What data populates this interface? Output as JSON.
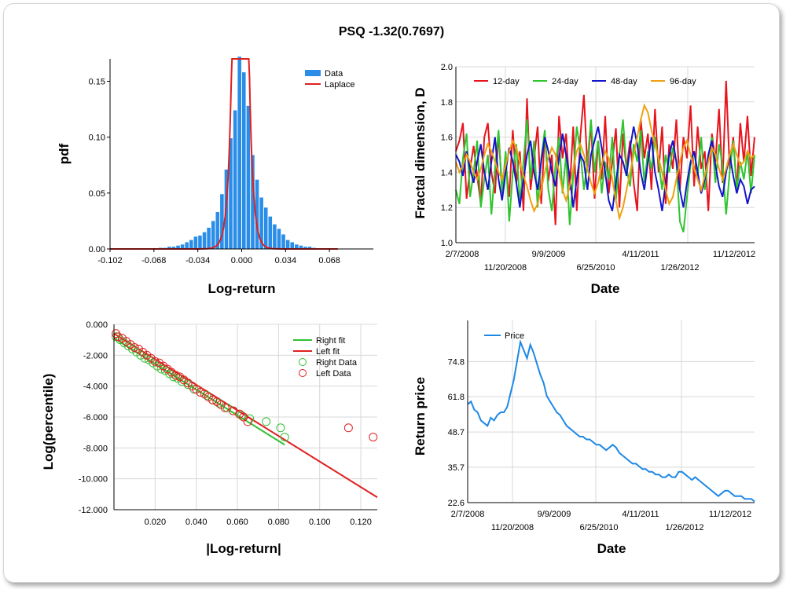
{
  "title": "PSQ -1.32(0.7697)",
  "chart_data": [
    {
      "type": "bar",
      "id": "histogram",
      "xlabel": "Log-return",
      "ylabel": "pdf",
      "xlim": [
        -0.102,
        0.102
      ],
      "ylim": [
        0,
        0.17
      ],
      "xticks": [
        "-0.102",
        "-0.068",
        "-0.034",
        "0.000",
        "0.034",
        "0.068"
      ],
      "xtick_values": [
        -0.102,
        -0.068,
        -0.034,
        0.0,
        0.034,
        0.068
      ],
      "yticks": [
        "0.00",
        "0.05",
        "0.10",
        "0.15"
      ],
      "ytick_values": [
        0,
        0.05,
        0.1,
        0.15
      ],
      "legend": [
        "Data",
        "Laplace"
      ],
      "bin_width": 0.0034,
      "bin_centers": [
        -0.0629,
        -0.0595,
        -0.0561,
        -0.0527,
        -0.0493,
        -0.0459,
        -0.0425,
        -0.0391,
        -0.0357,
        -0.0323,
        -0.0289,
        -0.0255,
        -0.0221,
        -0.0187,
        -0.0153,
        -0.0119,
        -0.0085,
        -0.0051,
        -0.0017,
        0.0017,
        0.0051,
        0.0085,
        0.0119,
        0.0153,
        0.0187,
        0.0221,
        0.0255,
        0.0289,
        0.0323,
        0.0357,
        0.0391,
        0.0425,
        0.0459,
        0.0493,
        0.0527,
        0.0561
      ],
      "values": [
        0.001,
        0.001,
        0.002,
        0.002,
        0.003,
        0.004,
        0.006,
        0.008,
        0.011,
        0.012,
        0.015,
        0.019,
        0.025,
        0.033,
        0.049,
        0.071,
        0.099,
        0.124,
        0.172,
        0.158,
        0.128,
        0.084,
        0.062,
        0.046,
        0.037,
        0.029,
        0.022,
        0.018,
        0.013,
        0.008,
        0.006,
        0.004,
        0.003,
        0.002,
        0.002,
        0.001
      ],
      "laplace": {
        "mu": -0.001,
        "b": 0.0029
      }
    },
    {
      "type": "line",
      "id": "fractal",
      "xlabel": "Date",
      "ylabel": "Fractal dimension, D",
      "ylim": [
        1.0,
        2.0
      ],
      "xticks_top": [
        "2/7/2008",
        "9/9/2009",
        "4/11/2011",
        "11/12/2012"
      ],
      "xticks_bottom": [
        "11/20/2008",
        "6/25/2010",
        "1/26/2012"
      ],
      "yticks": [
        "1.0",
        "1.2",
        "1.4",
        "1.6",
        "1.8",
        "2.0"
      ],
      "ytick_values": [
        1.0,
        1.2,
        1.4,
        1.6,
        1.8,
        2.0
      ],
      "series": [
        {
          "name": "12-day",
          "color": "#e8141c",
          "values": [
            1.52,
            1.58,
            1.68,
            1.25,
            1.42,
            1.55,
            1.38,
            1.22,
            1.6,
            1.68,
            1.4,
            1.28,
            1.62,
            1.3,
            1.46,
            1.26,
            1.64,
            1.34,
            1.52,
            1.18,
            1.82,
            1.3,
            1.48,
            1.66,
            1.22,
            1.62,
            1.35,
            1.5,
            1.1,
            1.72,
            1.48,
            1.62,
            1.3,
            1.66,
            1.18,
            1.6,
            1.84,
            1.42,
            1.68,
            1.25,
            1.58,
            1.36,
            1.72,
            1.28,
            1.46,
            1.65,
            1.2,
            1.62,
            1.42,
            1.58,
            1.34,
            1.18,
            1.7,
            1.48,
            1.62,
            1.3,
            1.76,
            1.4,
            1.66,
            1.22,
            1.56,
            1.42,
            1.7,
            1.3,
            1.6,
            1.48,
            1.78,
            1.32,
            1.66,
            1.42,
            1.52,
            1.18,
            1.62,
            1.46,
            1.76,
            1.34,
            1.92,
            1.42,
            1.6,
            1.3,
            1.68,
            1.46,
            1.72,
            1.38,
            1.6
          ]
        },
        {
          "name": "24-day",
          "color": "#2ec52e",
          "values": [
            1.3,
            1.22,
            1.48,
            1.62,
            1.26,
            1.4,
            1.58,
            1.2,
            1.36,
            1.5,
            1.16,
            1.42,
            1.64,
            1.28,
            1.52,
            1.12,
            1.4,
            1.56,
            1.22,
            1.46,
            1.7,
            1.36,
            1.58,
            1.2,
            1.48,
            1.64,
            1.3,
            1.18,
            1.44,
            1.6,
            1.28,
            1.5,
            1.1,
            1.38,
            1.66,
            1.52,
            1.3,
            1.46,
            1.7,
            1.4,
            1.58,
            1.28,
            1.46,
            1.36,
            1.6,
            1.24,
            1.5,
            1.7,
            1.42,
            1.32,
            1.56,
            1.46,
            1.64,
            1.34,
            1.52,
            1.42,
            1.6,
            1.46,
            1.3,
            1.5,
            1.4,
            1.54,
            1.46,
            1.12,
            1.06,
            1.26,
            1.44,
            1.52,
            1.38,
            1.6,
            1.3,
            1.48,
            1.6,
            1.34,
            1.56,
            1.44,
            1.16,
            1.4,
            1.58,
            1.3,
            1.46,
            1.36,
            1.52,
            1.28,
            1.5
          ]
        },
        {
          "name": "48-day",
          "color": "#1414cc",
          "values": [
            1.5,
            1.46,
            1.38,
            1.52,
            1.42,
            1.34,
            1.46,
            1.56,
            1.4,
            1.3,
            1.46,
            1.6,
            1.36,
            1.24,
            1.4,
            1.54,
            1.46,
            1.34,
            1.2,
            1.36,
            1.5,
            1.58,
            1.4,
            1.3,
            1.46,
            1.6,
            1.52,
            1.4,
            1.32,
            1.48,
            1.62,
            1.5,
            1.38,
            1.2,
            1.36,
            1.5,
            1.46,
            1.3,
            1.5,
            1.58,
            1.66,
            1.54,
            1.4,
            1.24,
            1.18,
            1.34,
            1.5,
            1.46,
            1.38,
            1.54,
            1.66,
            1.56,
            1.4,
            1.3,
            1.46,
            1.6,
            1.4,
            1.3,
            1.18,
            1.34,
            1.5,
            1.58,
            1.46,
            1.3,
            1.2,
            1.34,
            1.46,
            1.52,
            1.4,
            1.28,
            1.36,
            1.5,
            1.58,
            1.44,
            1.32,
            1.26,
            1.4,
            1.5,
            1.38,
            1.28,
            1.36,
            1.32,
            1.22,
            1.3,
            1.32
          ]
        },
        {
          "name": "96-day",
          "color": "#f0a010",
          "values": [
            1.46,
            1.4,
            1.44,
            1.5,
            1.46,
            1.4,
            1.36,
            1.42,
            1.5,
            1.56,
            1.52,
            1.46,
            1.4,
            1.36,
            1.44,
            1.52,
            1.58,
            1.54,
            1.46,
            1.38,
            1.32,
            1.24,
            1.18,
            1.22,
            1.3,
            1.4,
            1.48,
            1.54,
            1.5,
            1.4,
            1.3,
            1.24,
            1.32,
            1.42,
            1.52,
            1.56,
            1.5,
            1.42,
            1.34,
            1.28,
            1.34,
            1.44,
            1.52,
            1.48,
            1.36,
            1.24,
            1.14,
            1.2,
            1.3,
            1.4,
            1.5,
            1.6,
            1.7,
            1.78,
            1.74,
            1.64,
            1.56,
            1.48,
            1.4,
            1.3,
            1.22,
            1.26,
            1.36,
            1.46,
            1.54,
            1.58,
            1.5,
            1.42,
            1.36,
            1.3,
            1.38,
            1.46,
            1.54,
            1.5,
            1.42,
            1.36,
            1.42,
            1.5,
            1.56,
            1.5,
            1.44,
            1.46,
            1.52,
            1.48,
            1.5
          ]
        }
      ]
    },
    {
      "type": "scatter",
      "id": "tail",
      "xlabel": "|Log-return|",
      "ylabel": "Log(percentile)",
      "xlim": [
        0,
        0.128
      ],
      "ylim": [
        -12.0,
        0.0
      ],
      "xticks": [
        "0.020",
        "0.040",
        "0.060",
        "0.080",
        "0.100",
        "0.120"
      ],
      "xtick_values": [
        0.02,
        0.04,
        0.06,
        0.08,
        0.1,
        0.12
      ],
      "yticks": [
        "0.000",
        "-2.000",
        "-4.000",
        "-6.000",
        "-8.000",
        "-10.000",
        "-12.000"
      ],
      "ytick_values": [
        0,
        -2,
        -4,
        -6,
        -8,
        -10,
        -12
      ],
      "legend": [
        "Right fit",
        "Left fit",
        "Right Data",
        "Left Data"
      ],
      "right_fit": {
        "x": [
          0,
          0.083
        ],
        "y": [
          -0.9,
          -7.8
        ]
      },
      "left_fit": {
        "x": [
          0,
          0.128
        ],
        "y": [
          -0.6,
          -11.2
        ]
      },
      "right_data": {
        "x": [
          0.001,
          0.003,
          0.005,
          0.007,
          0.009,
          0.011,
          0.013,
          0.015,
          0.017,
          0.019,
          0.021,
          0.023,
          0.025,
          0.027,
          0.029,
          0.031,
          0.033,
          0.036,
          0.039,
          0.042,
          0.045,
          0.048,
          0.051,
          0.055,
          0.058,
          0.062,
          0.066,
          0.074,
          0.081,
          0.083
        ],
        "y": [
          -0.8,
          -1.0,
          -1.2,
          -1.4,
          -1.6,
          -1.8,
          -2.0,
          -2.2,
          -2.3,
          -2.5,
          -2.7,
          -2.9,
          -3.0,
          -3.2,
          -3.4,
          -3.5,
          -3.7,
          -3.9,
          -4.2,
          -4.4,
          -4.6,
          -4.9,
          -5.1,
          -5.4,
          -5.6,
          -5.9,
          -6.1,
          -6.3,
          -6.7,
          -7.3
        ]
      },
      "left_data": {
        "x": [
          0.001,
          0.002,
          0.004,
          0.006,
          0.008,
          0.01,
          0.012,
          0.014,
          0.016,
          0.018,
          0.02,
          0.022,
          0.024,
          0.026,
          0.028,
          0.03,
          0.032,
          0.034,
          0.036,
          0.038,
          0.04,
          0.042,
          0.044,
          0.046,
          0.048,
          0.05,
          0.052,
          0.054,
          0.058,
          0.061,
          0.063,
          0.065,
          0.114,
          0.126
        ],
        "y": [
          -0.6,
          -0.8,
          -0.9,
          -1.1,
          -1.3,
          -1.5,
          -1.6,
          -1.8,
          -2.0,
          -2.2,
          -2.4,
          -2.5,
          -2.7,
          -2.9,
          -3.1,
          -3.3,
          -3.4,
          -3.6,
          -3.8,
          -4.0,
          -4.2,
          -4.4,
          -4.5,
          -4.7,
          -4.9,
          -5.0,
          -5.2,
          -5.4,
          -5.6,
          -5.8,
          -6.0,
          -6.3,
          -6.7,
          -7.3
        ]
      }
    },
    {
      "type": "line",
      "id": "price",
      "xlabel": "Date",
      "ylabel": "Return price",
      "ylim": [
        22.6,
        90
      ],
      "xticks_top": [
        "2/7/2008",
        "9/9/2009",
        "4/11/2011",
        "11/12/2012"
      ],
      "xticks_bottom": [
        "11/20/2008",
        "6/25/2010",
        "1/26/2012"
      ],
      "yticks": [
        "22.6",
        "35.7",
        "48.7",
        "61.8",
        "74.8"
      ],
      "ytick_values": [
        22.6,
        35.7,
        48.7,
        61.8,
        74.8
      ],
      "legend": [
        "Price"
      ],
      "color": "#1e88e5",
      "values": [
        59,
        60,
        57,
        56,
        53,
        52,
        51,
        54,
        53,
        55,
        56,
        56,
        58,
        63,
        68,
        75,
        82,
        79,
        76,
        81,
        78,
        74,
        70,
        67,
        62,
        60,
        58,
        56,
        55,
        53,
        51,
        50,
        49,
        48,
        47,
        47,
        46,
        46,
        45,
        44,
        44,
        43,
        42,
        43,
        44,
        43,
        41,
        40,
        39,
        38,
        37,
        37,
        36,
        35,
        35,
        34,
        34,
        33,
        33,
        32,
        32,
        33,
        32,
        32,
        34,
        34,
        33,
        32,
        31,
        32,
        31,
        30,
        29,
        28,
        27,
        26,
        25,
        26,
        27,
        27,
        26,
        25,
        25,
        25,
        24,
        24,
        24,
        23
      ]
    }
  ]
}
